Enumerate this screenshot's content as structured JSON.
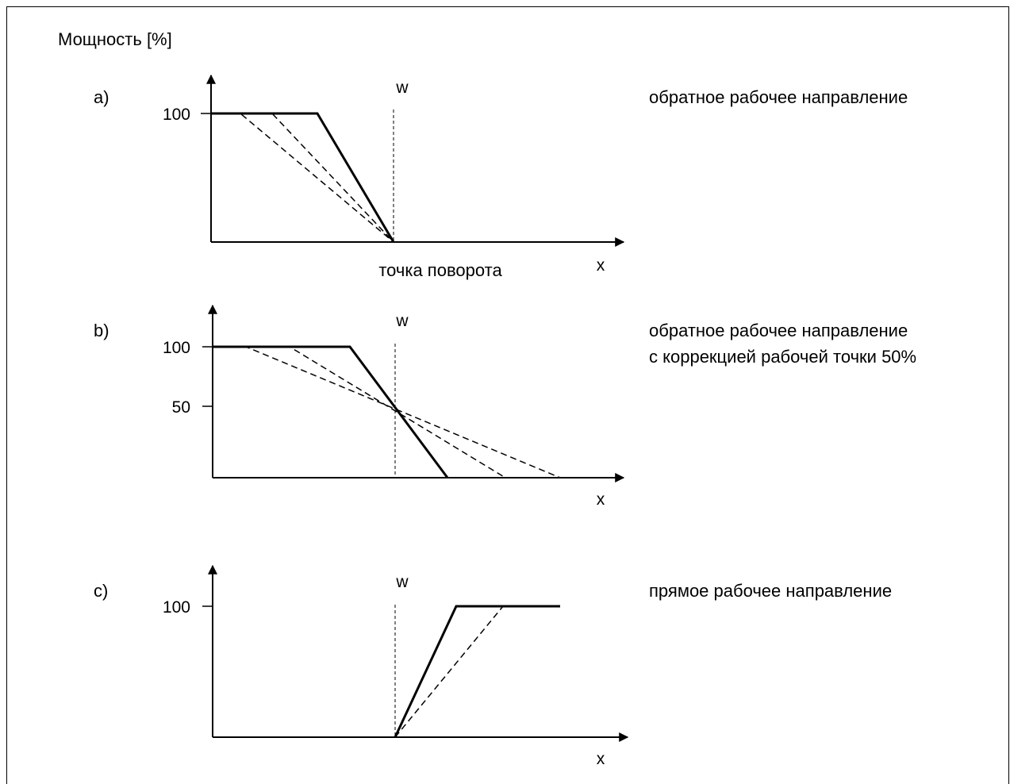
{
  "y_axis_title": "Мощность [%]",
  "panels": [
    {
      "label": "a)",
      "description_lines": [
        "обратное рабочее направление"
      ],
      "y_ticks": [
        "100"
      ],
      "setpoint_label": "w",
      "x_axis_label": "x",
      "pivot_label": "точка поворота"
    },
    {
      "label": "b)",
      "description_lines": [
        "обратное рабочее направление",
        "с коррекцией рабочей точки 50%"
      ],
      "y_ticks": [
        "100",
        "50"
      ],
      "setpoint_label": "w",
      "x_axis_label": "x"
    },
    {
      "label": "c)",
      "description_lines": [
        "прямое рабочее направление"
      ],
      "y_ticks": [
        "100"
      ],
      "setpoint_label": "w",
      "x_axis_label": "x"
    }
  ]
}
